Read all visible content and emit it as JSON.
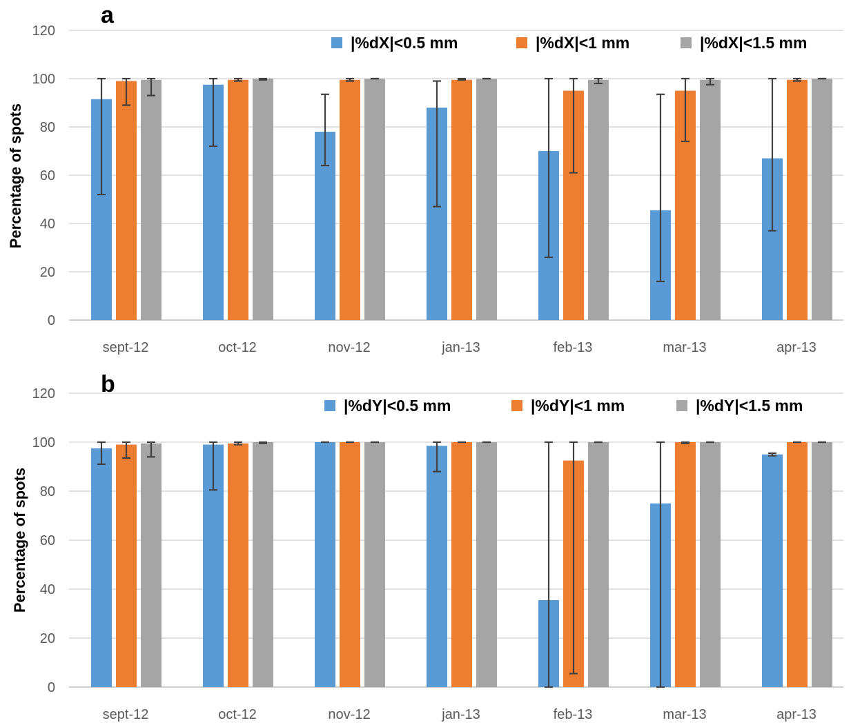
{
  "chart_data": [
    {
      "type": "bar",
      "panel_label": "a",
      "ylabel": "Percentage of spots",
      "ylim": [
        0,
        120
      ],
      "yticks": [
        0,
        20,
        40,
        60,
        80,
        100,
        120
      ],
      "grid": true,
      "legend_position": "top-right",
      "categories": [
        "sept-12",
        "oct-12",
        "nov-12",
        "jan-13",
        "feb-13",
        "mar-13",
        "apr-13"
      ],
      "series": [
        {
          "name": "|%dX|<0.5 mm",
          "color": "#5b9bd5",
          "values": [
            91.5,
            97.5,
            78,
            88,
            70,
            45.5,
            67
          ],
          "err_low": [
            52,
            72,
            64,
            47,
            26,
            16,
            37
          ],
          "err_high": [
            100,
            100,
            93.5,
            99,
            100,
            93.5,
            100
          ]
        },
        {
          "name": "|%dX|<1 mm",
          "color": "#ed7d31",
          "values": [
            99,
            99.5,
            99.5,
            99.5,
            95,
            95,
            99.5
          ],
          "err_low": [
            89,
            99,
            99,
            99.5,
            61,
            74,
            99
          ],
          "err_high": [
            100,
            100,
            100,
            100,
            100,
            100,
            100
          ]
        },
        {
          "name": "|%dX|<1.5 mm",
          "color": "#a5a5a5",
          "values": [
            99.5,
            100,
            100,
            100,
            99.5,
            99.5,
            100
          ],
          "err_low": [
            93,
            99.5,
            100,
            100,
            98,
            97.5,
            100
          ],
          "err_high": [
            100,
            100,
            100,
            100,
            100,
            100,
            100
          ]
        }
      ]
    },
    {
      "type": "bar",
      "panel_label": "b",
      "ylabel": "Percentage of spots",
      "ylim": [
        0,
        120
      ],
      "yticks": [
        0,
        20,
        40,
        60,
        80,
        100,
        120
      ],
      "grid": true,
      "legend_position": "top-right",
      "categories": [
        "sept-12",
        "oct-12",
        "nov-12",
        "jan-13",
        "feb-13",
        "mar-13",
        "apr-13"
      ],
      "series": [
        {
          "name": "|%dY|<0.5 mm",
          "color": "#5b9bd5",
          "values": [
            97.5,
            99,
            100,
            98.5,
            35.5,
            75,
            95
          ],
          "err_low": [
            91,
            80.5,
            100,
            88,
            0,
            0,
            94.5
          ],
          "err_high": [
            100,
            100,
            100,
            100,
            100,
            100,
            95.5
          ]
        },
        {
          "name": "|%dY|<1 mm",
          "color": "#ed7d31",
          "values": [
            99,
            99.5,
            100,
            100,
            92.5,
            100,
            100
          ],
          "err_low": [
            93.5,
            99,
            100,
            100,
            5.5,
            99.5,
            100
          ],
          "err_high": [
            100,
            100,
            100,
            100,
            100,
            100,
            100
          ]
        },
        {
          "name": "|%dY|<1.5 mm",
          "color": "#a5a5a5",
          "values": [
            99.5,
            100,
            100,
            100,
            100,
            100,
            100
          ],
          "err_low": [
            94,
            99.5,
            100,
            100,
            100,
            100,
            100
          ],
          "err_high": [
            100,
            100,
            100,
            100,
            100,
            100,
            100
          ]
        }
      ]
    }
  ]
}
